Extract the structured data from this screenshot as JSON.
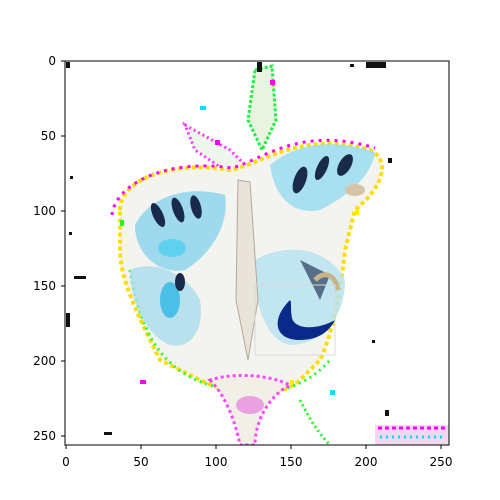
{
  "figure": {
    "description": "",
    "colors": {
      "axes_frame": "#000000",
      "background": "#ffffff",
      "wing_white": "#f3f4f0",
      "wing_blue": "#5fd0ee",
      "wing_dark": "#1a2a4a",
      "accent_navy": "#0a2a8a",
      "noise_magenta": "#ff00ff",
      "noise_green": "#22ff22",
      "noise_yellow": "#ffff00",
      "noise_cyan": "#00e5ff"
    }
  },
  "axes": {
    "x_ticks": [
      "0",
      "50",
      "100",
      "150",
      "200",
      "250"
    ],
    "y_ticks": [
      "0",
      "50",
      "100",
      "150",
      "200",
      "250"
    ],
    "x_range": [
      0,
      256
    ],
    "y_range": [
      256,
      0
    ]
  }
}
